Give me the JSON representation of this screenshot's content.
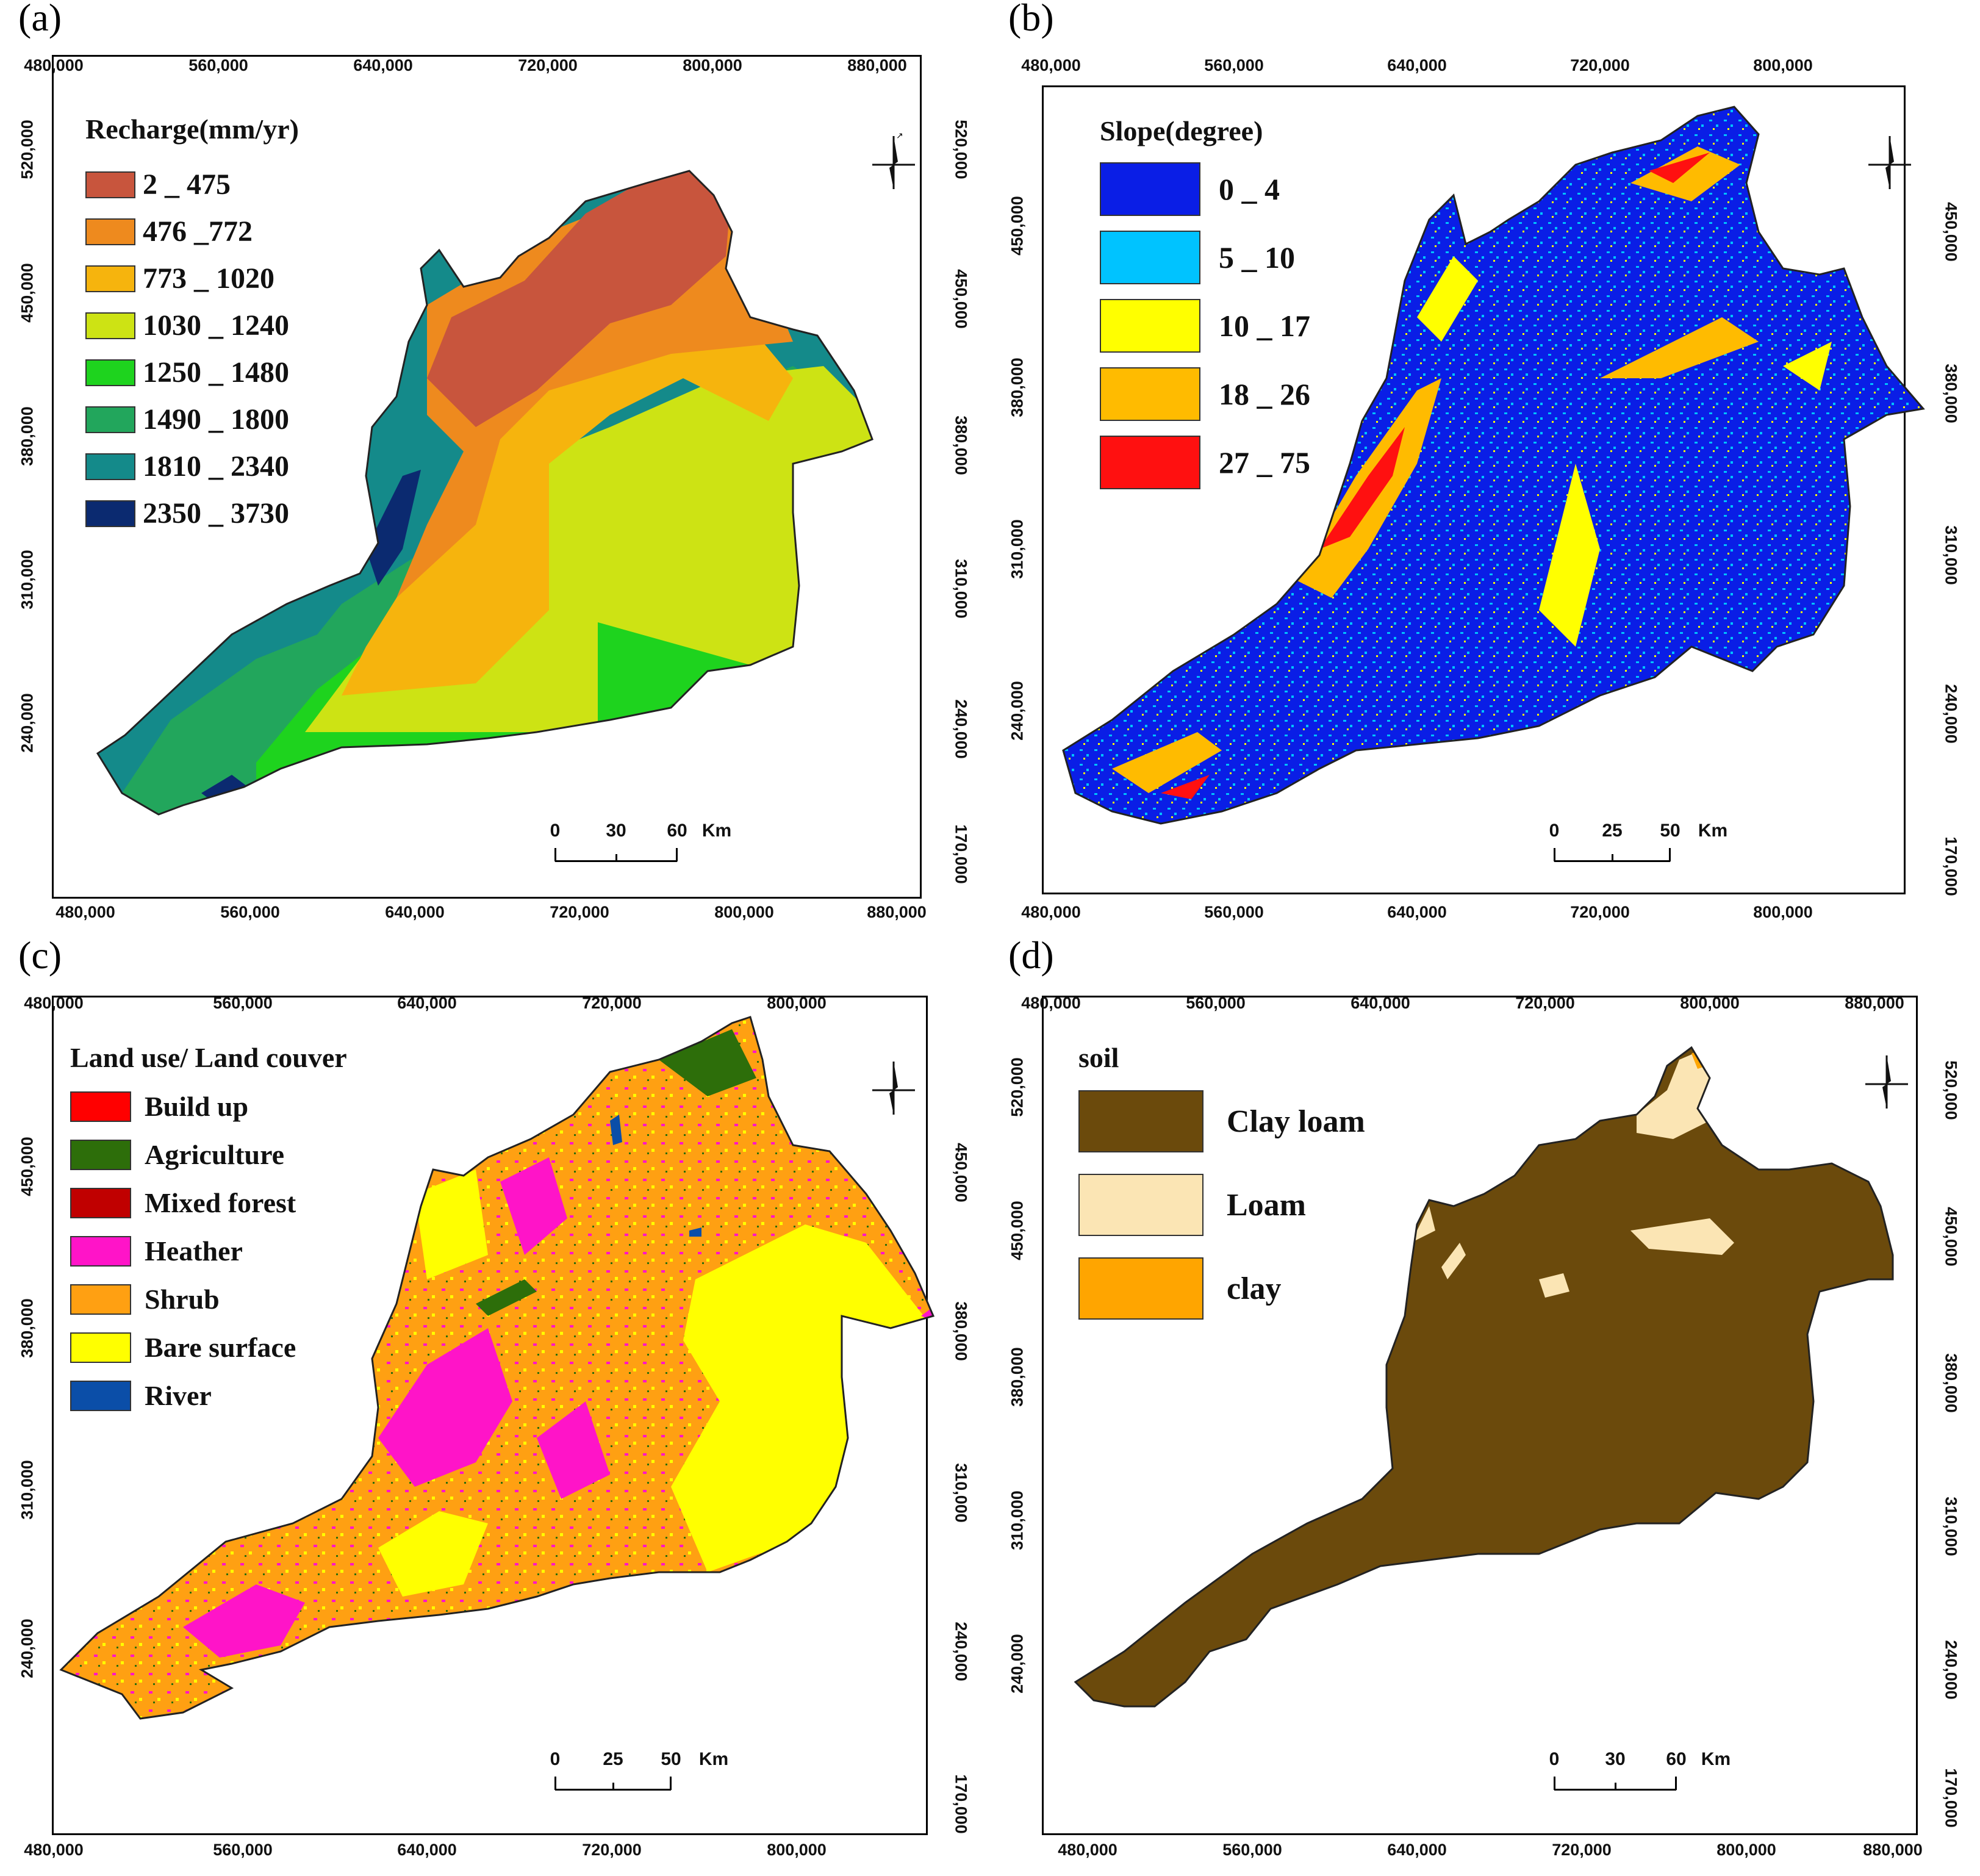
{
  "panels": [
    {
      "id": "a",
      "label": "(a)",
      "x_ticks": [
        "480,000",
        "560,000",
        "640,000",
        "720,000",
        "800,000",
        "880,000"
      ],
      "y_ticks": [
        "170,000",
        "240,000",
        "310,000",
        "380,000",
        "450,000",
        "520,000"
      ],
      "legend": {
        "title": "Recharge(mm/yr)",
        "items": [
          {
            "label": "2 _ 475",
            "color": "#c8553d"
          },
          {
            "label": "476 _772",
            "color": "#ee8a1e"
          },
          {
            "label": "773 _ 1020",
            "color": "#f6b40d"
          },
          {
            "label": "1030 _ 1240",
            "color": "#cde314"
          },
          {
            "label": "1250 _ 1480",
            "color": "#1ed31e"
          },
          {
            "label": "1490 _ 1800",
            "color": "#22a65c"
          },
          {
            "label": "1810 _ 2340",
            "color": "#148a8a"
          },
          {
            "label": "2350 _ 3730",
            "color": "#0b2a70"
          }
        ]
      },
      "scale": {
        "labels": [
          "0",
          "30",
          "60"
        ],
        "unit": "Km"
      }
    },
    {
      "id": "b",
      "label": "(b)",
      "x_ticks": [
        "480,000",
        "560,000",
        "640,000",
        "720,000",
        "800,000"
      ],
      "y_ticks": [
        "170,000",
        "240,000",
        "310,000",
        "380,000",
        "450,000"
      ],
      "legend": {
        "title": "Slope(degree)",
        "items": [
          {
            "label": "0 _ 4",
            "color": "#0a1ee6"
          },
          {
            "label": "5 _ 10",
            "color": "#00c3ff"
          },
          {
            "label": "10 _ 17",
            "color": "#ffff00"
          },
          {
            "label": "18 _ 26",
            "color": "#ffbb00"
          },
          {
            "label": "27 _ 75",
            "color": "#ff1010"
          }
        ]
      },
      "scale": {
        "labels": [
          "0",
          "25",
          "50"
        ],
        "unit": "Km"
      }
    },
    {
      "id": "c",
      "label": "(c)",
      "x_ticks": [
        "480,000",
        "560,000",
        "640,000",
        "720,000",
        "800,000"
      ],
      "y_ticks": [
        "170,000",
        "240,000",
        "310,000",
        "380,000",
        "450,000"
      ],
      "legend": {
        "title": "Land use/ Land couver",
        "items": [
          {
            "label": "Build up",
            "color": "#ff0000"
          },
          {
            "label": "Agriculture",
            "color": "#2d6e0a"
          },
          {
            "label": "Mixed forest",
            "color": "#c00000"
          },
          {
            "label": "Heather",
            "color": "#ff14c8"
          },
          {
            "label": "Shrub",
            "color": "#ffa012"
          },
          {
            "label": "Bare surface",
            "color": "#ffff00"
          },
          {
            "label": "River",
            "color": "#0b4ea8"
          }
        ]
      },
      "scale": {
        "labels": [
          "0",
          "25",
          "50"
        ],
        "unit": "Km"
      }
    },
    {
      "id": "d",
      "label": "(d)",
      "x_ticks": [
        "480,000",
        "560,000",
        "640,000",
        "720,000",
        "800,000",
        "880,000"
      ],
      "y_ticks": [
        "170,000",
        "240,000",
        "310,000",
        "380,000",
        "450,000",
        "520,000"
      ],
      "legend": {
        "title": "soil",
        "items": [
          {
            "label": "Clay loam",
            "color": "#6b4a0c"
          },
          {
            "label": "Loam",
            "color": "#fbe5b4"
          },
          {
            "label": "clay",
            "color": "#ffa500"
          }
        ]
      },
      "scale": {
        "labels": [
          "0",
          "30",
          "60"
        ],
        "unit": "Km"
      }
    }
  ]
}
